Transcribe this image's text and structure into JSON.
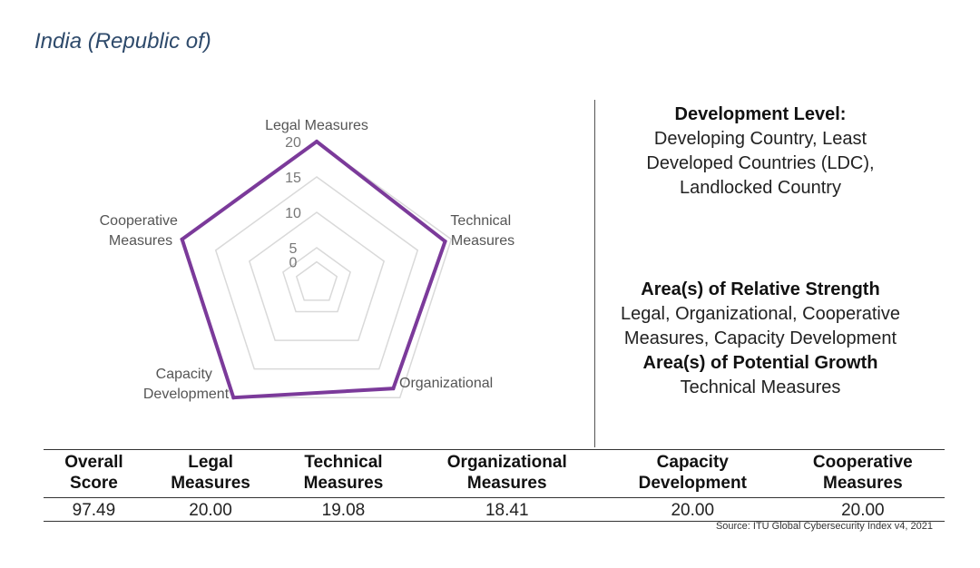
{
  "page": {
    "title": "India (Republic of)"
  },
  "chart_data": {
    "type": "radar",
    "axes": [
      "Legal Measures",
      "Technical Measures",
      "Organizational",
      "Capacity Development",
      "Cooperative Measures"
    ],
    "values": [
      20.0,
      19.08,
      18.41,
      20.0,
      20.0
    ],
    "ticks": [
      0,
      5,
      10,
      15,
      20
    ],
    "range": [
      0,
      20
    ],
    "series_color": "#7b3a9a",
    "grid_color": "#d9d9d9"
  },
  "info": {
    "dev_level_heading": "Development Level:",
    "dev_level_lines": [
      "Developing Country, Least",
      "Developed Countries (LDC),",
      "Landlocked Country"
    ],
    "strength_heading": "Area(s) of Relative Strength",
    "strength_lines": [
      "Legal, Organizational, Cooperative",
      "Measures, Capacity Development"
    ],
    "growth_heading": "Area(s) of Potential Growth",
    "growth_lines": [
      "Technical Measures"
    ]
  },
  "table": {
    "headers": [
      [
        "Overall",
        "Score"
      ],
      [
        "Legal",
        "Measures"
      ],
      [
        "Technical",
        "Measures"
      ],
      [
        "Organizational",
        "Measures"
      ],
      [
        "Capacity",
        "Development"
      ],
      [
        "Cooperative",
        "Measures"
      ]
    ],
    "values": [
      "97.49",
      "20.00",
      "19.08",
      "18.41",
      "20.00",
      "20.00"
    ]
  },
  "source": "Source: ITU Global Cybersecurity Index v4, 2021"
}
